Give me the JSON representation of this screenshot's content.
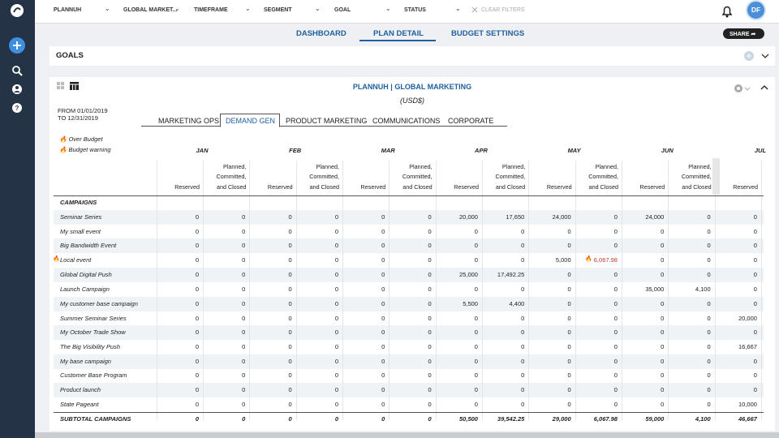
{
  "topbar": {
    "filters": [
      "PLANNUH",
      "GLOBAL MARKET...",
      "TIMEFRAME",
      "SEGMENT",
      "GOAL",
      "STATUS"
    ],
    "clear": "CLEAR FILTERS",
    "avatar": "DF"
  },
  "nav": {
    "tabs": [
      "DASHBOARD",
      "PLAN DETAIL",
      "BUDGET SETTINGS"
    ],
    "share": "SHARE"
  },
  "goals": {
    "title": "GOALS"
  },
  "plan": {
    "title": "PLANNUH | GLOBAL MARKETING",
    "currency": "(USD$)",
    "from": "FROM 01/01/2019",
    "to": "TO 12/31/2019",
    "tabs": [
      "MARKETING OPS",
      "DEMAND GEN",
      "PRODUCT MARKETING",
      "COMMUNICATIONS",
      "CORPORATE"
    ],
    "legend": [
      "Over Budget",
      "Budget warning"
    ],
    "table": {
      "months": [
        "JAN",
        "FEB",
        "MAR",
        "APR",
        "MAY",
        "JUN",
        "JUL"
      ],
      "column_headers": [
        "Reserved",
        "Planned, Committed, and Closed"
      ],
      "section": "CAMPAIGNS",
      "rows": [
        {
          "name": "Seminar Series",
          "cells": [
            "0",
            "0",
            "0",
            "0",
            "0",
            "0",
            "20,000",
            "17,650",
            "24,000",
            "0",
            "24,000",
            "0",
            "0"
          ]
        },
        {
          "name": "My small event",
          "cells": [
            "0",
            "0",
            "0",
            "0",
            "0",
            "0",
            "0",
            "0",
            "0",
            "0",
            "0",
            "0",
            "0"
          ]
        },
        {
          "name": "Big Bandwidth Event",
          "cells": [
            "0",
            "0",
            "0",
            "0",
            "0",
            "0",
            "0",
            "0",
            "0",
            "0",
            "0",
            "0",
            "0"
          ]
        },
        {
          "name": "Local event",
          "cells": [
            "0",
            "0",
            "0",
            "0",
            "0",
            "0",
            "0",
            "0",
            "5,000",
            "6,067.98",
            "0",
            "0",
            "0"
          ]
        },
        {
          "name": "Global Digital Push",
          "cells": [
            "0",
            "0",
            "0",
            "0",
            "0",
            "0",
            "25,000",
            "17,492.25",
            "0",
            "0",
            "0",
            "0",
            "0"
          ]
        },
        {
          "name": "Launch Campaign",
          "cells": [
            "0",
            "0",
            "0",
            "0",
            "0",
            "0",
            "0",
            "0",
            "0",
            "0",
            "35,000",
            "4,100",
            "0"
          ]
        },
        {
          "name": "My customer base campaign",
          "cells": [
            "0",
            "0",
            "0",
            "0",
            "0",
            "0",
            "5,500",
            "4,400",
            "0",
            "0",
            "0",
            "0",
            "0"
          ]
        },
        {
          "name": "Summer Seminar Series",
          "cells": [
            "0",
            "0",
            "0",
            "0",
            "0",
            "0",
            "0",
            "0",
            "0",
            "0",
            "0",
            "0",
            "20,000"
          ]
        },
        {
          "name": "My October Trade Show",
          "cells": [
            "0",
            "0",
            "0",
            "0",
            "0",
            "0",
            "0",
            "0",
            "0",
            "0",
            "0",
            "0",
            "0"
          ]
        },
        {
          "name": "The Big Visibility Push",
          "cells": [
            "0",
            "0",
            "0",
            "0",
            "0",
            "0",
            "0",
            "0",
            "0",
            "0",
            "0",
            "0",
            "16,667"
          ]
        },
        {
          "name": "My base campaign",
          "cells": [
            "0",
            "0",
            "0",
            "0",
            "0",
            "0",
            "0",
            "0",
            "0",
            "0",
            "0",
            "0",
            "0"
          ]
        },
        {
          "name": "Customer Base Program",
          "cells": [
            "0",
            "0",
            "0",
            "0",
            "0",
            "0",
            "0",
            "0",
            "0",
            "0",
            "0",
            "0",
            "0"
          ]
        },
        {
          "name": "Product launch",
          "cells": [
            "0",
            "0",
            "0",
            "0",
            "0",
            "0",
            "0",
            "0",
            "0",
            "0",
            "0",
            "0",
            "0"
          ]
        },
        {
          "name": "State Pageant",
          "cells": [
            "0",
            "0",
            "0",
            "0",
            "0",
            "0",
            "0",
            "0",
            "0",
            "0",
            "0",
            "0",
            "10,000"
          ]
        }
      ],
      "subtotal": {
        "name": "SUBTOTAL CAMPAIGNS",
        "cells": [
          "0",
          "0",
          "0",
          "0",
          "0",
          "0",
          "50,500",
          "39,542.25",
          "29,000",
          "6,067.98",
          "59,000",
          "4,100",
          "46,667"
        ]
      }
    }
  }
}
